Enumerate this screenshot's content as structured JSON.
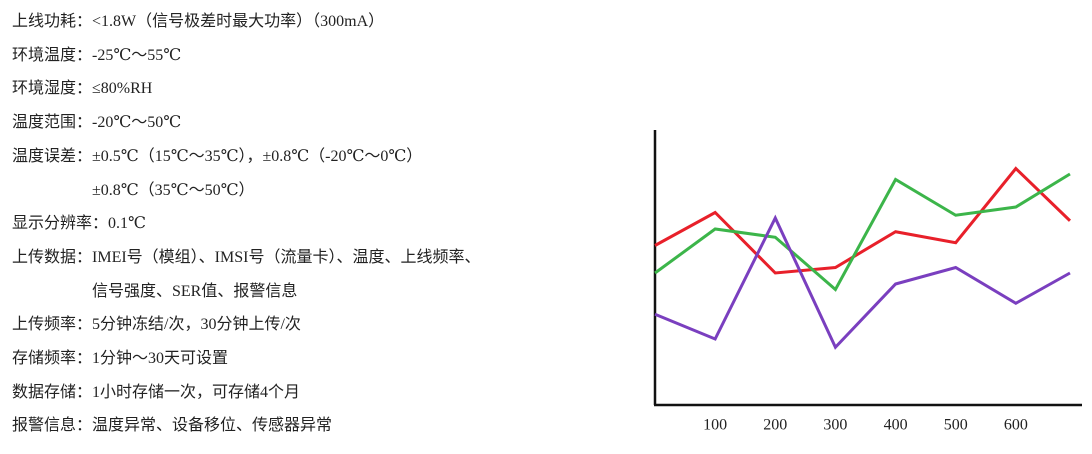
{
  "specs": [
    {
      "label": "上线功耗：",
      "lines": [
        "<1.8W（信号极差时最大功率）（300mA）"
      ]
    },
    {
      "label": "环境温度：",
      "lines": [
        "-25℃～55℃"
      ]
    },
    {
      "label": "环境湿度：",
      "lines": [
        "≤80%RH"
      ]
    },
    {
      "label": "温度范围：",
      "lines": [
        "-20℃～50℃"
      ]
    },
    {
      "label": "温度误差：",
      "lines": [
        "±0.5℃（15℃～35℃），±0.8℃（-20℃～0℃）",
        "±0.8℃（35℃～50℃）"
      ]
    },
    {
      "label": "显示分辨率：",
      "lines": [
        "0.1℃"
      ]
    },
    {
      "label": "上传数据：",
      "lines": [
        "IMEI号（模组）、IMSI号（流量卡）、温度、上线频率、",
        "信号强度、SER值、报警信息"
      ]
    },
    {
      "label": "上传频率：",
      "lines": [
        "5分钟冻结/次，30分钟上传/次"
      ]
    },
    {
      "label": "存储频率：",
      "lines": [
        "1分钟～30天可设置"
      ]
    },
    {
      "label": "数据存储：",
      "lines": [
        "1小时存储一次，可存储4个月"
      ]
    },
    {
      "label": "报警信息：",
      "lines": [
        "温度异常、设备移位、传感器异常"
      ]
    }
  ],
  "chart_data": {
    "type": "line",
    "x": [
      0,
      100,
      200,
      300,
      400,
      500,
      600,
      690
    ],
    "xlim": [
      0,
      710
    ],
    "xticks": [
      100,
      200,
      300,
      400,
      500,
      600
    ],
    "ylim": [
      0,
      100
    ],
    "series": [
      {
        "color": "#e8202a",
        "values": [
          58,
          70,
          48,
          50,
          63,
          59,
          86,
          67
        ]
      },
      {
        "color": "#3cb54a",
        "values": [
          48,
          64,
          61,
          42,
          82,
          69,
          72,
          84
        ]
      },
      {
        "color": "#7a3fbf",
        "values": [
          33,
          24,
          68,
          21,
          44,
          50,
          37,
          48
        ]
      }
    ]
  }
}
